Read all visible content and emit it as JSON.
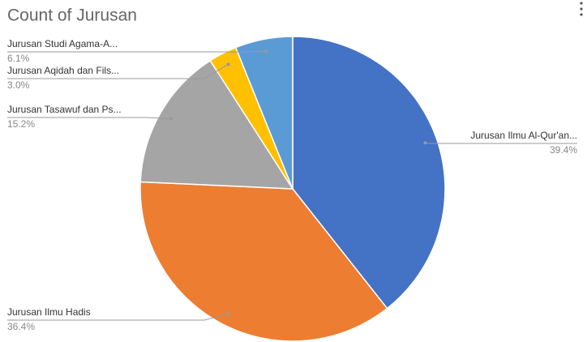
{
  "chart_data": {
    "type": "pie",
    "title": "Count of Jurusan",
    "categories": [
      "Jurusan Ilmu Al-Qur'an...",
      "Jurusan Ilmu Hadis",
      "Jurusan Tasawuf dan Ps...",
      "Jurusan Aqidah dan Fils...",
      "Jurusan Studi Agama-A..."
    ],
    "values": [
      39.4,
      36.4,
      15.2,
      3.0,
      6.1
    ],
    "value_labels": [
      "39.4%",
      "36.4%",
      "15.2%",
      "3.0%",
      "6.1%"
    ],
    "colors": [
      "#4472c4",
      "#ed7d31",
      "#a5a5a5",
      "#ffc000",
      "#5b9bd5"
    ]
  }
}
